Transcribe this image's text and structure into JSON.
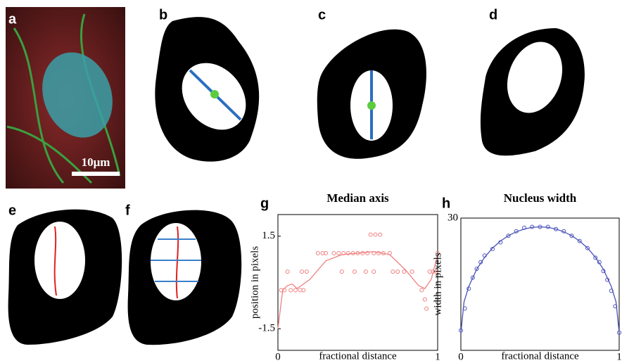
{
  "panels": {
    "labels": [
      "a",
      "b",
      "c",
      "d",
      "e",
      "f",
      "g",
      "h"
    ],
    "scale_bar": "10μm"
  },
  "chart_data": [
    {
      "type": "line",
      "title": "Median axis",
      "xlabel": "fractional distance",
      "ylabel": "position in pixels",
      "xlim": [
        0,
        1
      ],
      "ylim": [
        -2.2,
        2.2
      ],
      "xticks": [
        0,
        1
      ],
      "yticks": [
        -1.5,
        1.5
      ],
      "series": [
        {
          "mode": "markers",
          "color": "#f08080",
          "x": [
            0.02,
            0.04,
            0.06,
            0.08,
            0.11,
            0.14,
            0.15,
            0.16,
            0.18,
            0.25,
            0.28,
            0.3,
            0.35,
            0.38,
            0.4,
            0.41,
            0.44,
            0.47,
            0.48,
            0.5,
            0.53,
            0.55,
            0.56,
            0.58,
            0.6,
            0.6,
            0.61,
            0.63,
            0.64,
            0.66,
            0.7,
            0.72,
            0.75,
            0.79,
            0.84,
            0.9,
            0.92,
            0.93,
            0.95,
            0.97,
            0.99,
            1.0
          ],
          "values": [
            -0.25,
            -0.25,
            0.35,
            -0.25,
            -0.25,
            -0.25,
            0.35,
            -0.25,
            0.35,
            0.95,
            0.95,
            0.95,
            0.95,
            0.95,
            0.35,
            0.95,
            0.95,
            0.95,
            0.35,
            0.95,
            0.95,
            0.35,
            0.95,
            1.55,
            0.95,
            0.35,
            1.55,
            0.95,
            1.55,
            0.95,
            0.95,
            0.35,
            0.35,
            0.35,
            0.35,
            -0.25,
            -0.55,
            -0.85,
            0.35,
            0.35,
            0.35,
            0.95
          ]
        },
        {
          "mode": "line",
          "color": "#f08080",
          "x": [
            0,
            0.03,
            0.06,
            0.09,
            0.12,
            0.2,
            0.3,
            0.4,
            0.5,
            0.6,
            0.7,
            0.8,
            0.88,
            0.92,
            0.96,
            1.0
          ],
          "values": [
            -1.5,
            -0.25,
            -0.1,
            -0.05,
            -0.2,
            0.1,
            0.7,
            0.9,
            0.95,
            1.0,
            0.9,
            0.4,
            -0.1,
            -0.2,
            0.1,
            0.9
          ]
        }
      ]
    },
    {
      "type": "line",
      "title": "Nucleus width",
      "xlabel": "fractional distance",
      "ylabel": "width in pixels",
      "xlim": [
        0,
        1
      ],
      "ylim": [
        0,
        30
      ],
      "xticks": [
        0,
        1
      ],
      "yticks": [
        30
      ],
      "series": [
        {
          "mode": "markers",
          "color": "#4a52b8",
          "x": [
            0,
            0.025,
            0.05,
            0.075,
            0.1,
            0.125,
            0.15,
            0.2,
            0.25,
            0.3,
            0.35,
            0.4,
            0.45,
            0.5,
            0.55,
            0.6,
            0.65,
            0.7,
            0.75,
            0.8,
            0.85,
            0.875,
            0.9,
            0.925,
            0.95,
            0.975,
            1.0
          ],
          "values": [
            4.5,
            9.5,
            14,
            16.5,
            18.5,
            20,
            21.5,
            23,
            24.5,
            26,
            27,
            27.8,
            28,
            28,
            28,
            27.5,
            27,
            26,
            24.8,
            23.2,
            21,
            20,
            18,
            16,
            13.5,
            10,
            4
          ]
        },
        {
          "mode": "line",
          "color": "#4a52b8",
          "x": [
            0,
            0.02,
            0.05,
            0.1,
            0.15,
            0.2,
            0.25,
            0.3,
            0.35,
            0.4,
            0.45,
            0.5,
            0.55,
            0.6,
            0.65,
            0.7,
            0.75,
            0.8,
            0.85,
            0.9,
            0.95,
            0.98,
            1.0
          ],
          "values": [
            4,
            11,
            14.5,
            18.4,
            21.1,
            23.2,
            24.8,
            26,
            26.9,
            27.5,
            27.9,
            28,
            27.9,
            27.5,
            26.9,
            26,
            24.8,
            23.2,
            21.1,
            18.4,
            14.5,
            11,
            4
          ]
        }
      ]
    }
  ]
}
